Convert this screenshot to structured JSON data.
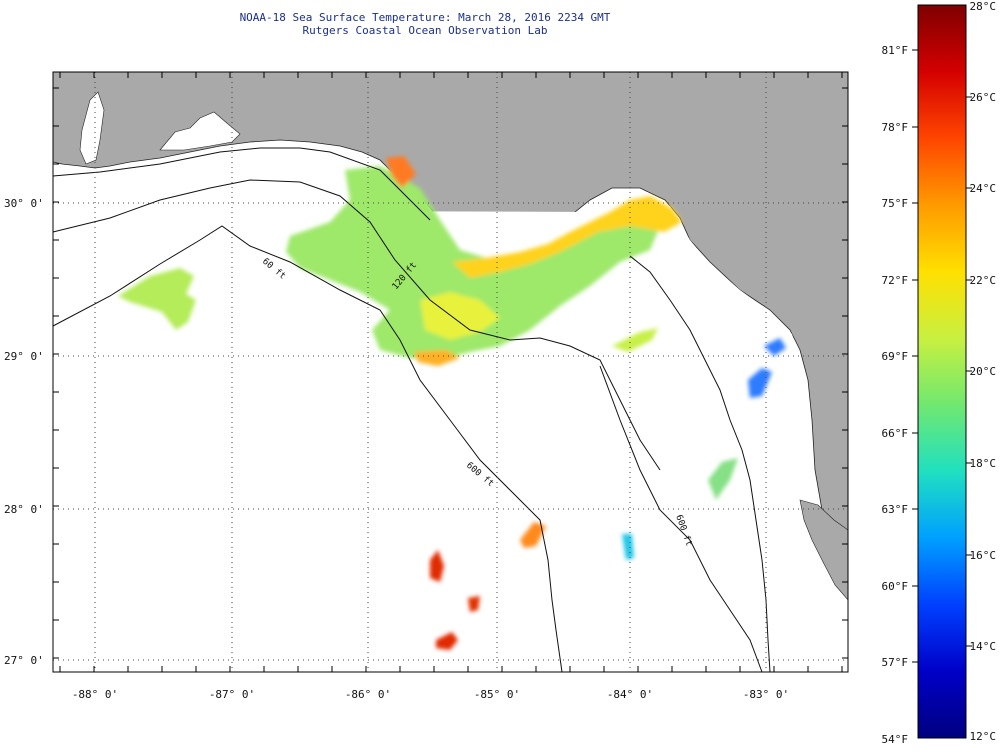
{
  "header": {
    "title": "NOAA-18 Sea Surface Temperature:  March 28, 2016 2234 GMT",
    "subtitle": "Rutgers Coastal Ocean Observation Lab"
  },
  "map": {
    "longitude_labels": [
      "-88° 0'",
      "-87° 0'",
      "-86° 0'",
      "-85° 0'",
      "-84° 0'",
      "-83° 0'"
    ],
    "latitude_labels": [
      "30° 0'",
      "29° 0'",
      "28° 0'",
      "27° 0'"
    ],
    "isobath_labels": [
      "60 ft",
      "120 ft",
      "600 ft",
      "600 ft"
    ],
    "colors": {
      "land": "#a9a9a9",
      "ocean": "#ffffff",
      "grid": "#555555"
    }
  },
  "colorbar": {
    "fahrenheit_labels": [
      "81°F",
      "78°F",
      "75°F",
      "72°F",
      "69°F",
      "66°F",
      "63°F",
      "60°F",
      "57°F",
      "54°F"
    ],
    "celsius_labels": [
      "28°C",
      "26°C",
      "24°C",
      "22°C",
      "20°C",
      "18°C",
      "16°C",
      "14°C",
      "12°C"
    ],
    "gradient_colors": [
      "#7f0000",
      "#d40000",
      "#ff4500",
      "#ff9a00",
      "#ffe000",
      "#c8f040",
      "#70e870",
      "#20e0c0",
      "#00a0ff",
      "#0040ff",
      "#0000c8",
      "#00007f"
    ]
  }
}
